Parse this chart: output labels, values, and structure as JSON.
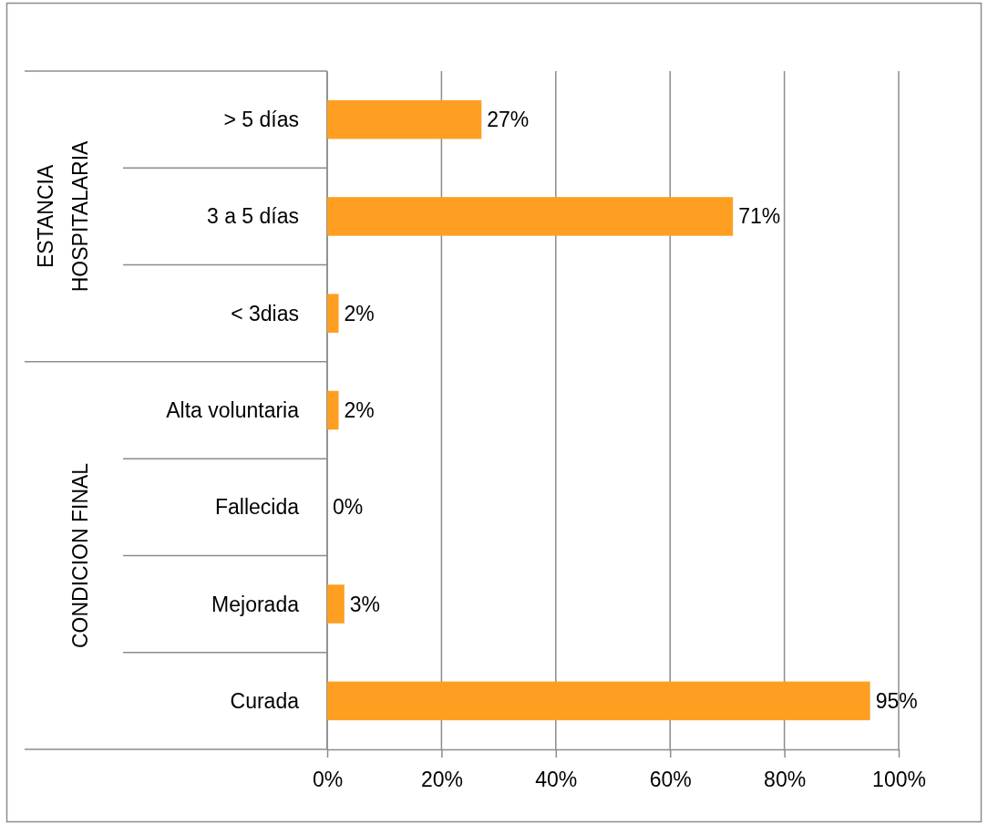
{
  "chart_data": {
    "type": "bar",
    "orientation": "horizontal",
    "categories": [
      "> 5 días",
      "3 a 5 días",
      "< 3dias",
      "Alta voluntaria",
      "Fallecida",
      "Mejorada",
      "Curada"
    ],
    "values": [
      27,
      71,
      2,
      2,
      0,
      3,
      95
    ],
    "value_labels": [
      "27%",
      "71%",
      "2%",
      "2%",
      "0%",
      "3%",
      "95%"
    ],
    "color": "#fe9f22",
    "xlim": [
      0,
      100
    ],
    "xticks": [
      {
        "value": 0,
        "label": "0%"
      },
      {
        "value": 20,
        "label": "20%"
      },
      {
        "value": 40,
        "label": "40%"
      },
      {
        "value": 60,
        "label": "60%"
      },
      {
        "value": 80,
        "label": "80%"
      },
      {
        "value": 100,
        "label": "100%"
      }
    ],
    "grid": "x",
    "annotations": [
      "ESTANCIA\nHOSPITALARIA",
      "CONDICION FINAL"
    ]
  }
}
